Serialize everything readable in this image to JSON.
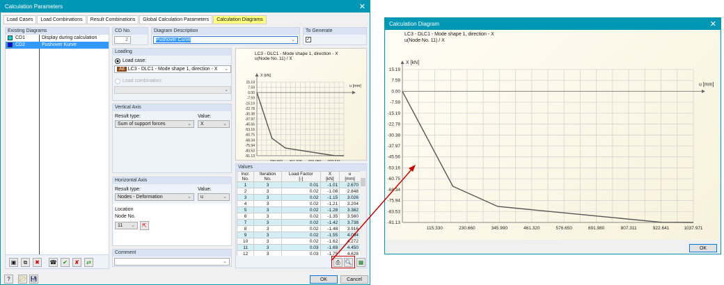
{
  "main_dialog": {
    "title": "Calculation Parameters",
    "close_icon": "close-icon",
    "tabs": [
      "Load Cases",
      "Load Combinations",
      "Result Combinations",
      "Global Calculation Parameters",
      "Calculation Diagrams"
    ],
    "existing_diagrams": {
      "header": "Existing Diagrams",
      "items": [
        {
          "id": "CD1",
          "desc": "Display during calculation",
          "color": "#00d8e0"
        },
        {
          "id": "CD2",
          "desc": "Pushover Kurve",
          "color": "#0000ff"
        }
      ]
    },
    "cd_no": {
      "label": "CD No.",
      "value": "2"
    },
    "description": {
      "label": "Diagram Description",
      "value": "Pushover Curve"
    },
    "to_generate": {
      "label": "To Generate",
      "checked": true
    },
    "loading": {
      "header": "Loading",
      "load_case_label": "Load case:",
      "load_case_tag": "All",
      "load_case_value": "LC3 - DLC1 - Mode shape 1, direction - X",
      "load_combination_label": "Load combination:"
    },
    "vertical_axis": {
      "header": "Vertical Axis",
      "result_type_label": "Result type:",
      "result_type": "Sum of support forces",
      "value_label": "Value:",
      "value": "X"
    },
    "horizontal_axis": {
      "header": "Horizontal Axis",
      "result_type_label": "Result type:",
      "result_type": "Nodes - Deformation",
      "value_label": "Value:",
      "value": "u",
      "location_label": "Location",
      "node_label": "Node No.",
      "node": "11"
    },
    "comment": {
      "header": "Comment",
      "value": ""
    },
    "values": {
      "header": "Values",
      "columns": [
        [
          "Incr.",
          "No."
        ],
        [
          "Iteration",
          "No."
        ],
        [
          "Load Factor",
          "[-]"
        ],
        [
          "X",
          "[kN]"
        ],
        [
          "u",
          "[mm]"
        ]
      ],
      "rows": [
        [
          "1",
          "3",
          "0.01",
          "-1.01",
          "2.670"
        ],
        [
          "2",
          "3",
          "0.02",
          "-1.08",
          "2.848"
        ],
        [
          "3",
          "3",
          "0.02",
          "-1.15",
          "3.026"
        ],
        [
          "4",
          "3",
          "0.02",
          "-1.21",
          "3.204"
        ],
        [
          "5",
          "3",
          "0.02",
          "-1.28",
          "3.382"
        ],
        [
          "6",
          "3",
          "0.02",
          "-1.35",
          "3.560"
        ],
        [
          "7",
          "3",
          "0.02",
          "-1.42",
          "3.738"
        ],
        [
          "8",
          "3",
          "0.02",
          "-1.48",
          "3.916"
        ],
        [
          "9",
          "3",
          "0.02",
          "-1.55",
          "4.094"
        ],
        [
          "10",
          "3",
          "0.02",
          "-1.62",
          "4.272"
        ],
        [
          "11",
          "3",
          "0.03",
          "-1.69",
          "4.450"
        ],
        [
          "12",
          "3",
          "0.03",
          "-1.75",
          "4.628"
        ]
      ]
    },
    "ok": "OK",
    "cancel": "Cancel"
  },
  "diagram_dialog": {
    "title": "Calculation Diagram",
    "ok": "OK"
  },
  "highlight_color": "#cc0000",
  "chart_data": {
    "type": "line",
    "title": "LC3 - DLC1 - Mode shape 1, direction - X",
    "subtitle": "u(Node No. 11) / X",
    "ylabel": "X [kN]",
    "xlabel": "u [mm]",
    "yticks": [
      "15.19",
      "7.59",
      "0.00",
      "-7.59",
      "-15.19",
      "-22.78",
      "-30.38",
      "-37.97",
      "-45.56",
      "-53.16",
      "-60.75",
      "-68.34",
      "-75.94",
      "-83.53",
      "-91.13"
    ],
    "xticks": [
      "115.330",
      "230.660",
      "345.990",
      "461.320",
      "576.650",
      "691.980",
      "807.311",
      "922.641",
      "1037.971"
    ],
    "xticks_preview": [
      "230.660",
      "461.320",
      "691.980",
      "922.641"
    ],
    "xlim": [
      0,
      1037.971
    ],
    "ylim": [
      -91.13,
      15.19
    ],
    "grid": true,
    "series": [
      {
        "x": [
          0,
          180,
          340,
          922,
          1037.971
        ],
        "y": [
          0,
          -66,
          -80,
          -91,
          -91.13
        ],
        "color": "#555555"
      }
    ]
  }
}
